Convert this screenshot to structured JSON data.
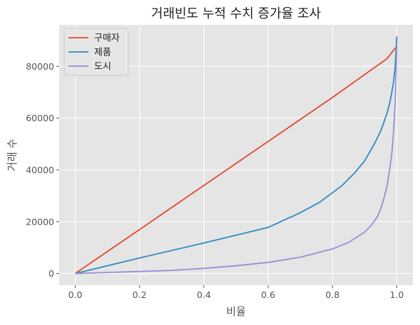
{
  "chart_data": {
    "type": "line",
    "title": "거래빈도 누적 수치 증가율 조사",
    "xlabel": "비율",
    "ylabel": "거래 수",
    "xlim": [
      -0.05,
      1.05
    ],
    "ylim": [
      -4500,
      96000
    ],
    "xticks": [
      0.0,
      0.2,
      0.4,
      0.6,
      0.8,
      1.0
    ],
    "xtick_labels": [
      "0.0",
      "0.2",
      "0.4",
      "0.6",
      "0.8",
      "1.0"
    ],
    "yticks": [
      0,
      20000,
      40000,
      60000,
      80000
    ],
    "ytick_labels": [
      "0",
      "20000",
      "40000",
      "60000",
      "80000"
    ],
    "grid": true,
    "legend_position": "top-left",
    "series": [
      {
        "name": "구매자",
        "color": "#e24a33",
        "x": [
          0.0,
          0.2,
          0.4,
          0.6,
          0.8,
          0.97,
          1.0
        ],
        "y": [
          0,
          17000,
          34000,
          51000,
          68000,
          83000,
          87800
        ]
      },
      {
        "name": "제품",
        "color": "#348abd",
        "x": [
          0.0,
          0.2,
          0.4,
          0.59,
          0.6,
          0.7,
          0.76,
          0.83,
          0.87,
          0.9,
          0.93,
          0.95,
          0.97,
          0.98,
          0.99,
          0.995,
          1.0
        ],
        "y": [
          0,
          6000,
          11800,
          17500,
          17800,
          23500,
          27500,
          34000,
          39000,
          43500,
          50000,
          55000,
          62000,
          67000,
          74000,
          80000,
          91500
        ]
      },
      {
        "name": "도시",
        "color": "#988ed5",
        "x": [
          0.0,
          0.1,
          0.2,
          0.3,
          0.4,
          0.5,
          0.6,
          0.7,
          0.8,
          0.85,
          0.9,
          0.92,
          0.94,
          0.95,
          0.96,
          0.97,
          0.98,
          0.985,
          0.99,
          0.995,
          1.0
        ],
        "y": [
          0,
          400,
          800,
          1200,
          2000,
          3000,
          4300,
          6300,
          9500,
          12000,
          16000,
          18500,
          22000,
          25000,
          29000,
          34000,
          42000,
          47000,
          55000,
          66000,
          88000
        ]
      }
    ]
  }
}
